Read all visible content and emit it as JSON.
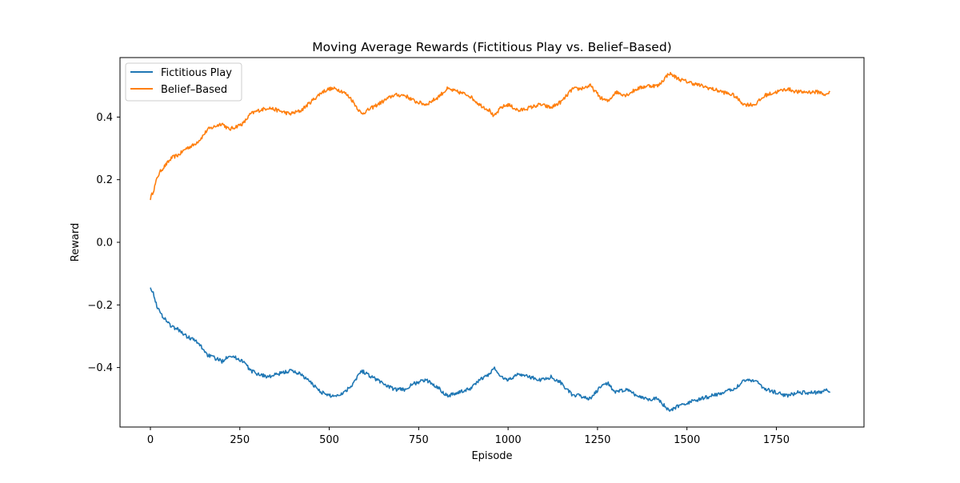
{
  "chart_data": {
    "type": "line",
    "title": "Moving Average Rewards (Fictitious Play vs. Belief–Based)",
    "xlabel": "Episode",
    "ylabel": "Reward",
    "xlim": [
      -85,
      1995
    ],
    "ylim": [
      -0.59,
      0.59
    ],
    "xticks": [
      0,
      250,
      500,
      750,
      1000,
      1250,
      1500,
      1750
    ],
    "yticks": [
      -0.4,
      -0.2,
      0.0,
      0.2,
      0.4
    ],
    "ytick_labels": [
      "−0.4",
      "−0.2",
      "0.0",
      "0.2",
      "0.4"
    ],
    "grid": false,
    "legend_position": "top-left",
    "series": [
      {
        "name": "Belief–Based",
        "color": "#ff7f0e",
        "x": [
          0,
          10,
          20,
          30,
          45,
          60,
          80,
          100,
          120,
          140,
          160,
          180,
          200,
          220,
          240,
          260,
          280,
          300,
          330,
          360,
          390,
          420,
          450,
          480,
          500,
          520,
          540,
          560,
          590,
          620,
          650,
          680,
          710,
          740,
          770,
          800,
          830,
          860,
          890,
          920,
          950,
          960,
          980,
          1000,
          1030,
          1060,
          1090,
          1120,
          1150,
          1180,
          1200,
          1230,
          1260,
          1280,
          1300,
          1330,
          1360,
          1390,
          1420,
          1450,
          1480,
          1510,
          1540,
          1570,
          1600,
          1630,
          1660,
          1690,
          1720,
          1750,
          1780,
          1810,
          1840,
          1870,
          1890,
          1900
        ],
        "values": [
          0.14,
          0.17,
          0.21,
          0.23,
          0.25,
          0.27,
          0.28,
          0.3,
          0.31,
          0.33,
          0.36,
          0.37,
          0.38,
          0.36,
          0.37,
          0.38,
          0.41,
          0.42,
          0.43,
          0.42,
          0.41,
          0.42,
          0.45,
          0.48,
          0.49,
          0.49,
          0.48,
          0.46,
          0.41,
          0.43,
          0.45,
          0.47,
          0.47,
          0.45,
          0.44,
          0.46,
          0.49,
          0.48,
          0.47,
          0.44,
          0.42,
          0.4,
          0.43,
          0.44,
          0.42,
          0.43,
          0.44,
          0.43,
          0.45,
          0.49,
          0.49,
          0.5,
          0.46,
          0.45,
          0.48,
          0.47,
          0.49,
          0.5,
          0.5,
          0.54,
          0.52,
          0.51,
          0.5,
          0.49,
          0.48,
          0.47,
          0.44,
          0.44,
          0.47,
          0.48,
          0.49,
          0.48,
          0.48,
          0.48,
          0.47,
          0.48
        ]
      },
      {
        "name": "Fictitious Play",
        "color": "#1f77b4",
        "x": [
          0,
          10,
          20,
          30,
          45,
          60,
          80,
          100,
          120,
          140,
          160,
          180,
          200,
          220,
          240,
          260,
          280,
          300,
          330,
          360,
          390,
          420,
          450,
          480,
          500,
          520,
          540,
          560,
          590,
          620,
          650,
          680,
          710,
          740,
          770,
          800,
          830,
          860,
          890,
          920,
          950,
          960,
          980,
          1000,
          1030,
          1060,
          1090,
          1120,
          1150,
          1180,
          1200,
          1230,
          1260,
          1280,
          1300,
          1330,
          1360,
          1390,
          1420,
          1450,
          1480,
          1510,
          1540,
          1570,
          1600,
          1630,
          1660,
          1690,
          1720,
          1750,
          1780,
          1810,
          1840,
          1870,
          1890,
          1900
        ],
        "values": [
          -0.14,
          -0.17,
          -0.21,
          -0.23,
          -0.25,
          -0.27,
          -0.28,
          -0.3,
          -0.31,
          -0.33,
          -0.36,
          -0.37,
          -0.38,
          -0.36,
          -0.37,
          -0.38,
          -0.41,
          -0.42,
          -0.43,
          -0.42,
          -0.41,
          -0.42,
          -0.45,
          -0.48,
          -0.49,
          -0.49,
          -0.48,
          -0.46,
          -0.41,
          -0.43,
          -0.45,
          -0.47,
          -0.47,
          -0.45,
          -0.44,
          -0.46,
          -0.49,
          -0.48,
          -0.47,
          -0.44,
          -0.42,
          -0.4,
          -0.43,
          -0.44,
          -0.42,
          -0.43,
          -0.44,
          -0.43,
          -0.45,
          -0.49,
          -0.49,
          -0.5,
          -0.46,
          -0.45,
          -0.48,
          -0.47,
          -0.49,
          -0.5,
          -0.5,
          -0.54,
          -0.52,
          -0.51,
          -0.5,
          -0.49,
          -0.48,
          -0.47,
          -0.44,
          -0.44,
          -0.47,
          -0.48,
          -0.49,
          -0.48,
          -0.48,
          -0.48,
          -0.47,
          -0.48
        ]
      }
    ]
  }
}
